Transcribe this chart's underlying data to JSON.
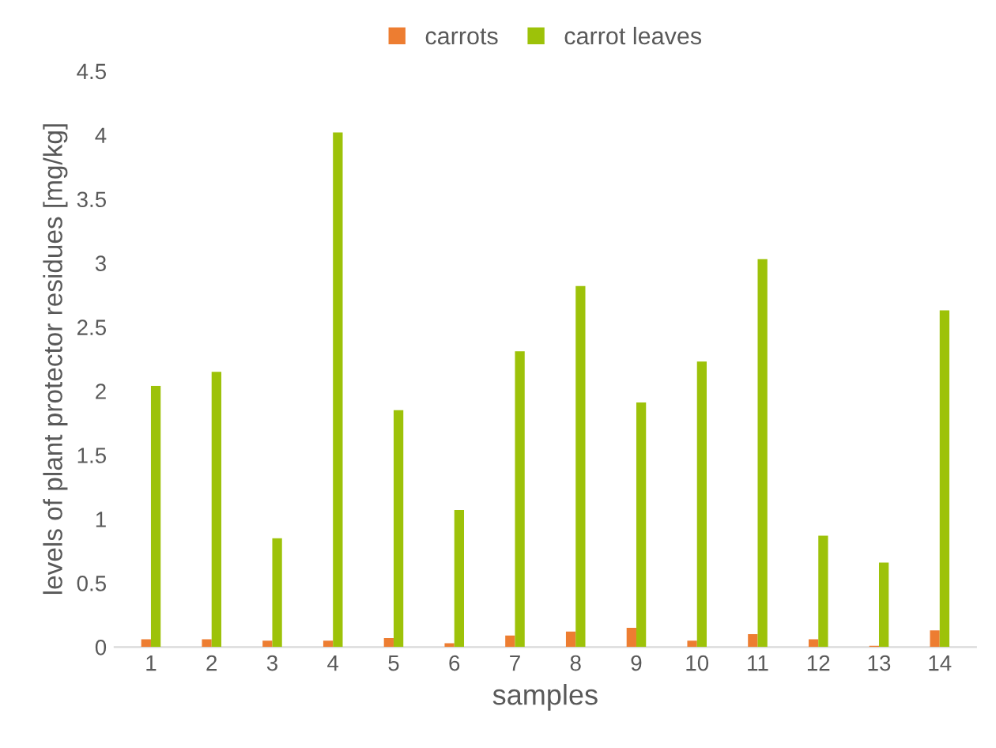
{
  "chart_data": {
    "type": "bar",
    "xlabel": "samples",
    "ylabel": "levels of plant protector residues [mg/kg]",
    "categories": [
      "1",
      "2",
      "3",
      "4",
      "5",
      "6",
      "7",
      "8",
      "9",
      "10",
      "11",
      "12",
      "13",
      "14"
    ],
    "series": [
      {
        "name": "carrots",
        "color": "#ed7d31",
        "values": [
          0.06,
          0.06,
          0.05,
          0.05,
          0.07,
          0.03,
          0.09,
          0.12,
          0.15,
          0.05,
          0.1,
          0.06,
          0.01,
          0.13
        ]
      },
      {
        "name": "carrot leaves",
        "color": "#9dc209",
        "values": [
          2.04,
          2.15,
          0.85,
          4.02,
          1.85,
          1.07,
          2.31,
          2.82,
          1.91,
          2.23,
          3.03,
          0.87,
          0.66,
          2.63
        ]
      }
    ],
    "ylim": [
      0,
      4.5
    ],
    "yticks": [
      0,
      0.5,
      1,
      1.5,
      2,
      2.5,
      3,
      3.5,
      4,
      4.5
    ],
    "grid": false,
    "legend": "top"
  }
}
